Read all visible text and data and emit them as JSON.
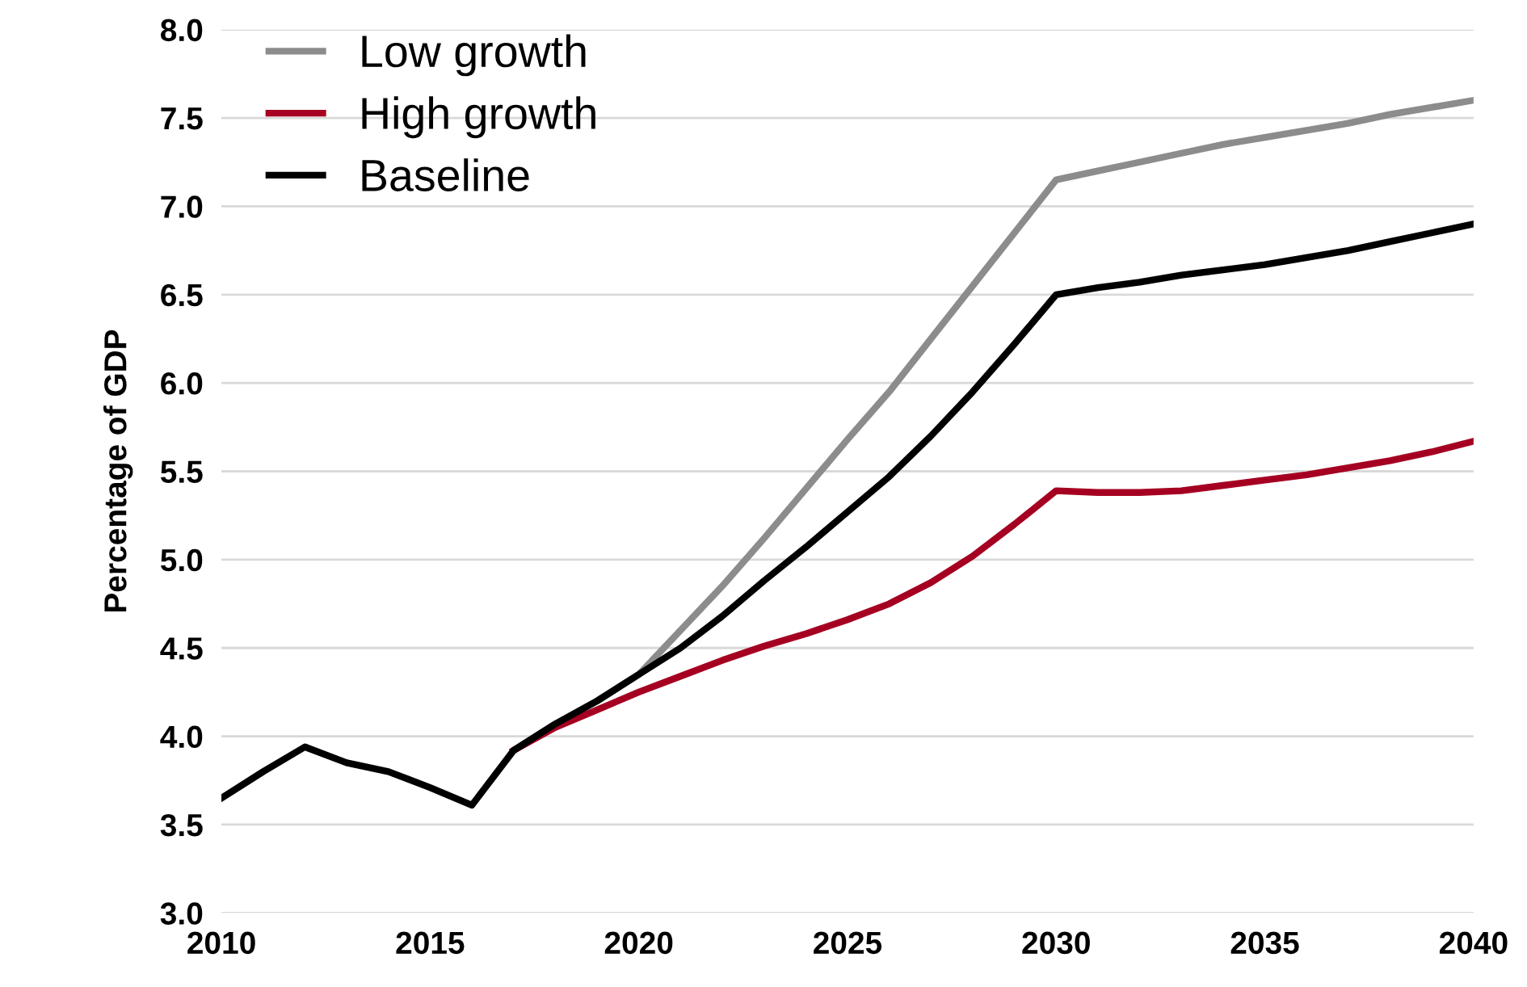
{
  "chart_data": {
    "type": "line",
    "ylabel": "Percentage of GDP",
    "x": [
      2010,
      2011,
      2012,
      2013,
      2014,
      2015,
      2016,
      2017,
      2018,
      2019,
      2020,
      2021,
      2022,
      2023,
      2024,
      2025,
      2026,
      2027,
      2028,
      2029,
      2030,
      2031,
      2032,
      2033,
      2034,
      2035,
      2036,
      2037,
      2038,
      2039,
      2040
    ],
    "series": [
      {
        "name": "Low growth",
        "color": "#8c8c8c",
        "values": [
          null,
          null,
          null,
          null,
          null,
          null,
          null,
          3.92,
          4.07,
          4.2,
          4.35,
          4.6,
          4.85,
          5.12,
          5.4,
          5.68,
          5.95,
          6.25,
          6.55,
          6.85,
          7.15,
          7.2,
          7.25,
          7.3,
          7.35,
          7.39,
          7.43,
          7.47,
          7.52,
          7.56,
          7.6
        ]
      },
      {
        "name": "High growth",
        "color": "#a50021",
        "values": [
          null,
          null,
          null,
          null,
          null,
          null,
          null,
          3.92,
          4.05,
          4.15,
          4.25,
          4.34,
          4.43,
          4.51,
          4.58,
          4.66,
          4.75,
          4.87,
          5.02,
          5.2,
          5.39,
          5.38,
          5.38,
          5.39,
          5.42,
          5.45,
          5.48,
          5.52,
          5.56,
          5.61,
          5.67
        ]
      },
      {
        "name": "Baseline",
        "color": "#000000",
        "values": [
          3.65,
          3.8,
          3.94,
          3.85,
          3.8,
          3.71,
          3.61,
          3.92,
          4.07,
          4.2,
          4.35,
          4.5,
          4.68,
          4.88,
          5.07,
          5.27,
          5.47,
          5.7,
          5.95,
          6.22,
          6.5,
          6.54,
          6.57,
          6.61,
          6.64,
          6.67,
          6.71,
          6.75,
          6.8,
          6.85,
          6.9
        ]
      }
    ],
    "xlim": [
      2010,
      2040
    ],
    "xticks": [
      2010,
      2015,
      2020,
      2025,
      2030,
      2035,
      2040
    ],
    "ylim": [
      3.0,
      8.0
    ],
    "yticks": [
      {
        "value": 3.0,
        "label": "3.0"
      },
      {
        "value": 3.5,
        "label": "3.5"
      },
      {
        "value": 4.0,
        "label": "4.0"
      },
      {
        "value": 4.5,
        "label": "4.5"
      },
      {
        "value": 5.0,
        "label": "5.0"
      },
      {
        "value": 5.5,
        "label": "5.5"
      },
      {
        "value": 6.0,
        "label": "6.0"
      },
      {
        "value": 6.5,
        "label": "6.5"
      },
      {
        "value": 7.0,
        "label": "7.0"
      },
      {
        "value": 7.5,
        "label": "7.5"
      },
      {
        "value": 8.0,
        "label": "8.0"
      }
    ],
    "grid": "y",
    "legend": "top left",
    "marker": "none",
    "line_style": "solid"
  }
}
